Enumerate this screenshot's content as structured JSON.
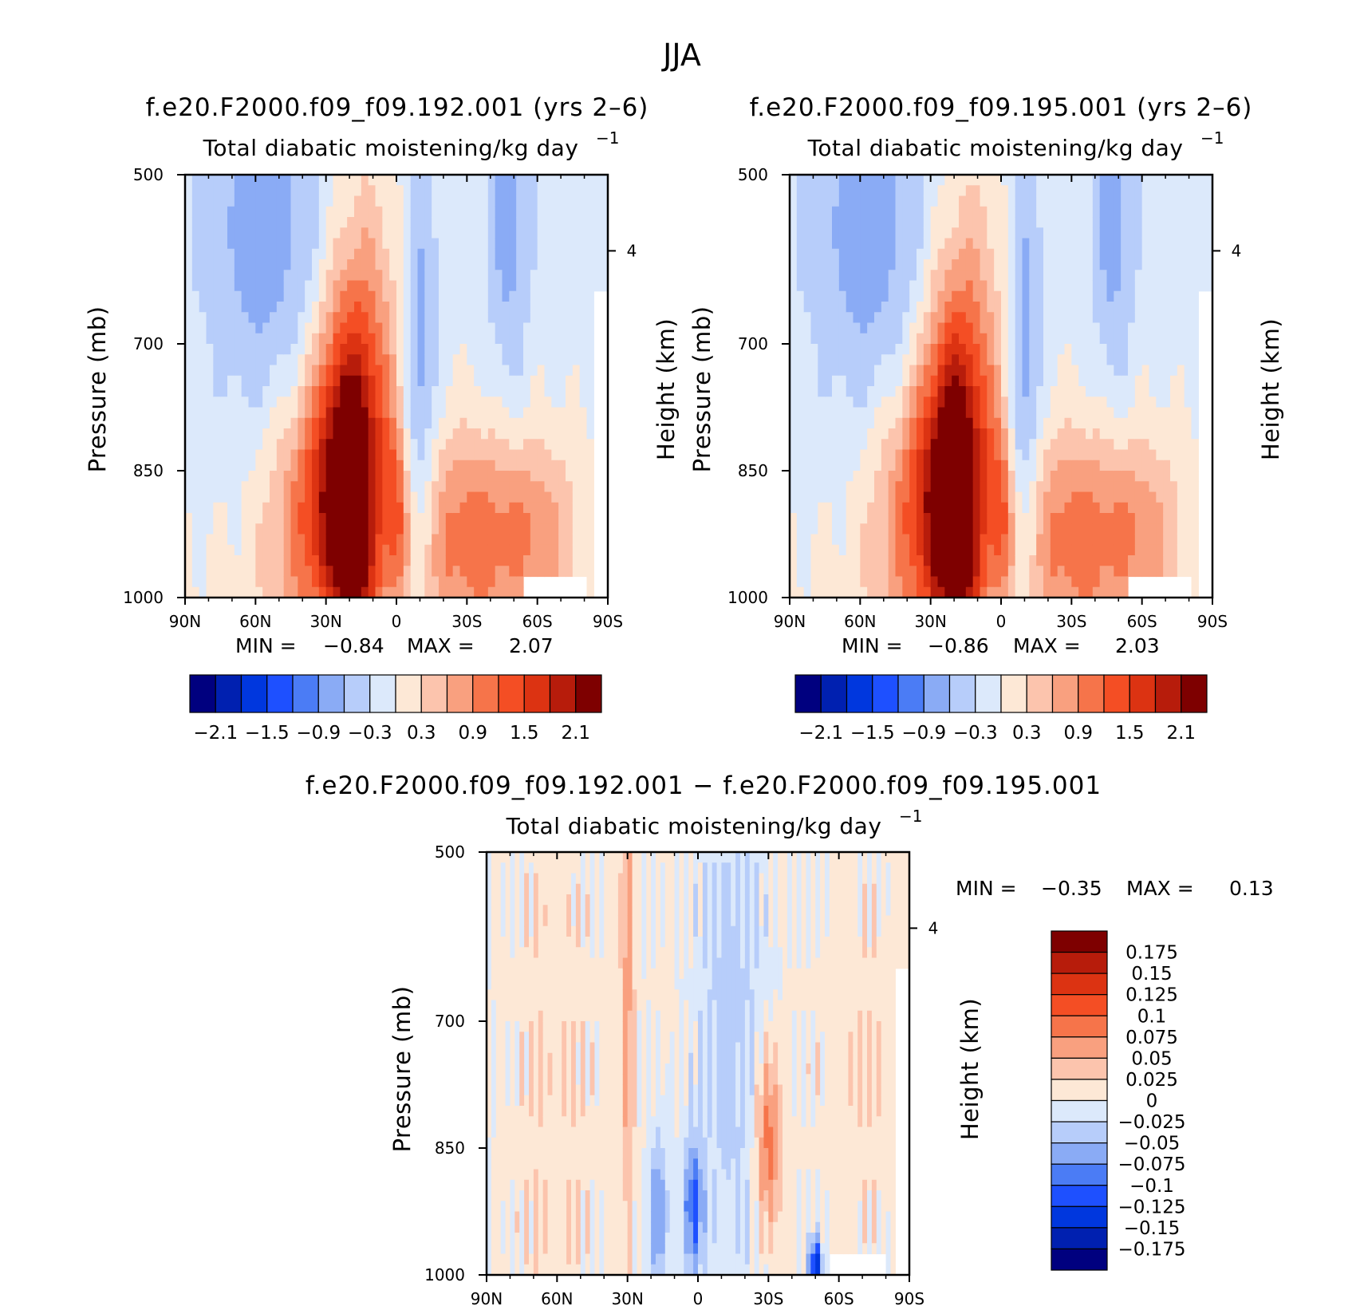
{
  "page_title": "JJA",
  "colors": {
    "abs_scale": [
      "#00007f",
      "#0020b0",
      "#0037de",
      "#1e50ff",
      "#4b7cf5",
      "#8aabf5",
      "#b7cdfa",
      "#dce9fb",
      "#fde8d6",
      "#fcc4ad",
      "#f9a07f",
      "#f6744a",
      "#f44e24",
      "#dc3312",
      "#b71c0b",
      "#7e0000"
    ],
    "diff_scale": [
      "#00007f",
      "#0020b0",
      "#0037de",
      "#1e50ff",
      "#4b7cf5",
      "#8aabf5",
      "#b7cdfa",
      "#dce9fb",
      "#fde8d6",
      "#fcc4ad",
      "#f9a07f",
      "#f6744a",
      "#f44e24",
      "#dc3312",
      "#b71c0b",
      "#7e0000"
    ]
  },
  "chart_data": [
    {
      "type": "heatmap",
      "title": "f.e20.F2000.f09_f09.192.001 (yrs 2–6)",
      "subtitle": "Total diabatic moistening/kg day",
      "subtitle_sup": "−1",
      "xlabel": "",
      "ylabel": "Pressure (mb)",
      "ylabel_right": "Height (km)",
      "x_ticks": [
        "90N",
        "60N",
        "30N",
        "0",
        "30S",
        "60S",
        "90S"
      ],
      "x_range": [
        90,
        -90
      ],
      "y_ticks": [
        "500",
        "700",
        "850",
        "1000"
      ],
      "y_tick_values": [
        500,
        700,
        850,
        1000
      ],
      "y_range": [
        500,
        1000
      ],
      "right_ticks": [
        "4"
      ],
      "right_tick_values": [
        4
      ],
      "min_label": "MIN =",
      "min_value": "−0.84",
      "max_label": "MAX =",
      "max_value": "2.07",
      "colorbar_labels": [
        "−2.1",
        "−1.5",
        "−0.9",
        "−0.3",
        "0.3",
        "0.9",
        "1.5",
        "2.1"
      ],
      "features": [
        {
          "lat": 20,
          "p": 840,
          "amp": 2.0,
          "slat": 10,
          "sp": 140
        },
        {
          "lat": 18,
          "p": 980,
          "amp": 0.6,
          "slat": 6,
          "sp": 50
        },
        {
          "lat": 12,
          "p": 700,
          "amp": 0.6,
          "slat": 12,
          "sp": 220
        },
        {
          "lat": 35,
          "p": 900,
          "amp": 1.1,
          "slat": 15,
          "sp": 110
        },
        {
          "lat": 0,
          "p": 900,
          "amp": 0.7,
          "slat": 3,
          "sp": 70
        },
        {
          "lat": -10,
          "p": 760,
          "amp": -0.8,
          "slat": 5,
          "sp": 170
        },
        {
          "lat": -48,
          "p": 580,
          "amp": -0.55,
          "slat": 6,
          "sp": 140
        },
        {
          "lat": 55,
          "p": 600,
          "amp": -0.6,
          "slat": 18,
          "sp": 160
        },
        {
          "lat": -30,
          "p": 930,
          "amp": 1.0,
          "slat": 18,
          "sp": 90
        },
        {
          "lat": -60,
          "p": 920,
          "amp": 0.6,
          "slat": 14,
          "sp": 80
        }
      ]
    },
    {
      "type": "heatmap",
      "title": "f.e20.F2000.f09_f09.195.001 (yrs 2–6)",
      "subtitle": "Total diabatic moistening/kg day",
      "subtitle_sup": "−1",
      "xlabel": "",
      "ylabel": "Pressure (mb)",
      "ylabel_right": "Height (km)",
      "x_ticks": [
        "90N",
        "60N",
        "30N",
        "0",
        "30S",
        "60S",
        "90S"
      ],
      "x_range": [
        90,
        -90
      ],
      "y_ticks": [
        "500",
        "700",
        "850",
        "1000"
      ],
      "y_tick_values": [
        500,
        700,
        850,
        1000
      ],
      "y_range": [
        500,
        1000
      ],
      "right_ticks": [
        "4"
      ],
      "right_tick_values": [
        4
      ],
      "min_label": "MIN =",
      "min_value": "−0.86",
      "max_label": "MAX =",
      "max_value": "2.03",
      "colorbar_labels": [
        "−2.1",
        "−1.5",
        "−0.9",
        "−0.3",
        "0.3",
        "0.9",
        "1.5",
        "2.1"
      ],
      "features": [
        {
          "lat": 20,
          "p": 850,
          "amp": 1.95,
          "slat": 10,
          "sp": 140
        },
        {
          "lat": 18,
          "p": 980,
          "amp": 0.6,
          "slat": 6,
          "sp": 50
        },
        {
          "lat": 12,
          "p": 700,
          "amp": 0.6,
          "slat": 12,
          "sp": 220
        },
        {
          "lat": 35,
          "p": 900,
          "amp": 1.1,
          "slat": 15,
          "sp": 110
        },
        {
          "lat": 0,
          "p": 900,
          "amp": 0.7,
          "slat": 3,
          "sp": 70
        },
        {
          "lat": -10,
          "p": 760,
          "amp": -0.82,
          "slat": 5,
          "sp": 170
        },
        {
          "lat": -48,
          "p": 580,
          "amp": -0.55,
          "slat": 6,
          "sp": 140
        },
        {
          "lat": 55,
          "p": 600,
          "amp": -0.6,
          "slat": 18,
          "sp": 160
        },
        {
          "lat": -30,
          "p": 930,
          "amp": 1.0,
          "slat": 18,
          "sp": 90
        },
        {
          "lat": -60,
          "p": 920,
          "amp": 0.6,
          "slat": 14,
          "sp": 80
        }
      ]
    },
    {
      "type": "heatmap",
      "title": "f.e20.F2000.f09_f09.192.001 − f.e20.F2000.f09_f09.195.001",
      "subtitle": "Total diabatic moistening/kg day",
      "subtitle_sup": "−1",
      "xlabel": "",
      "ylabel": "Pressure (mb)",
      "ylabel_right": "Height (km)",
      "x_ticks": [
        "90N",
        "60N",
        "30N",
        "0",
        "30S",
        "60S",
        "90S"
      ],
      "x_range": [
        90,
        -90
      ],
      "y_ticks": [
        "500",
        "700",
        "850",
        "1000"
      ],
      "y_tick_values": [
        500,
        700,
        850,
        1000
      ],
      "y_range": [
        500,
        1000
      ],
      "right_ticks": [
        "4"
      ],
      "right_tick_values": [
        4
      ],
      "min_label": "MIN =",
      "min_value": "−0.35",
      "max_label": "MAX =",
      "max_value": "0.13",
      "colorbar_labels": [
        "0.175",
        "0.15",
        "0.125",
        "0.1",
        "0.075",
        "0.05",
        "0.025",
        "0",
        "−0.025",
        "−0.05",
        "−0.075",
        "−0.1",
        "−0.125",
        "−0.15",
        "−0.175"
      ],
      "features": [
        {
          "lat": 30,
          "p": 650,
          "amp": 0.06,
          "slat": 2,
          "sp": 250
        },
        {
          "lat": -30,
          "p": 840,
          "amp": 0.09,
          "slat": 4,
          "sp": 80
        },
        {
          "lat": 2,
          "p": 920,
          "amp": -0.1,
          "slat": 3,
          "sp": 60
        },
        {
          "lat": 17,
          "p": 930,
          "amp": -0.08,
          "slat": 3,
          "sp": 70
        },
        {
          "lat": -50,
          "p": 990,
          "amp": -0.15,
          "slat": 2,
          "sp": 25
        },
        {
          "lat": -15,
          "p": 700,
          "amp": -0.03,
          "slat": 12,
          "sp": 200
        },
        {
          "lat": 55,
          "p": 800,
          "amp": 0.02,
          "slat": 15,
          "sp": 300
        },
        {
          "lat": -70,
          "p": 750,
          "amp": 0.025,
          "slat": 12,
          "sp": 200
        }
      ]
    }
  ]
}
